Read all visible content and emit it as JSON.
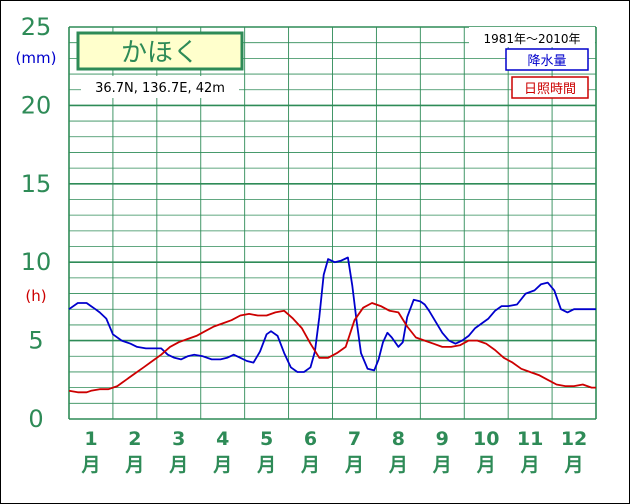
{
  "colors": {
    "grid": "#2e8b57",
    "frame_text": "#2e8b57",
    "precip_line": "#0000cc",
    "sunshine_line": "#cc0000",
    "title_box_fill": "#ffffcc",
    "title_text": "#2e8b57"
  },
  "chart_data": {
    "type": "line",
    "title": "かほく",
    "location": "36.7N,  136.7E,  42m",
    "period": "1981年〜2010年",
    "y_unit_primary": "(mm)",
    "y_unit_secondary": "(h)",
    "ylim": [
      0,
      25
    ],
    "y_ticks": [
      "0",
      "5",
      "10",
      "15",
      "20",
      "25"
    ],
    "month_numbers": [
      "1",
      "2",
      "3",
      "4",
      "5",
      "6",
      "7",
      "8",
      "9",
      "10",
      "11",
      "12"
    ],
    "month_suffix": "月",
    "x_range_months": [
      0.5,
      12.5
    ],
    "series": [
      {
        "name": "降水量",
        "x": [
          0.5,
          0.7,
          0.9,
          1.0,
          1.1,
          1.2,
          1.35,
          1.5,
          1.7,
          1.9,
          2.05,
          2.25,
          2.45,
          2.6,
          2.75,
          2.9,
          3.05,
          3.2,
          3.35,
          3.55,
          3.75,
          3.95,
          4.1,
          4.25,
          4.4,
          4.55,
          4.7,
          4.85,
          5.0,
          5.1,
          5.25,
          5.4,
          5.55,
          5.7,
          5.85,
          6.0,
          6.1,
          6.2,
          6.3,
          6.4,
          6.55,
          6.7,
          6.85,
          6.95,
          7.05,
          7.15,
          7.3,
          7.45,
          7.55,
          7.65,
          7.75,
          7.85,
          8.0,
          8.1,
          8.2,
          8.35,
          8.5,
          8.6,
          8.7,
          8.85,
          9.0,
          9.15,
          9.3,
          9.45,
          9.6,
          9.75,
          9.9,
          10.05,
          10.2,
          10.35,
          10.5,
          10.7,
          10.9,
          11.1,
          11.25,
          11.4,
          11.55,
          11.7,
          11.85,
          12.0,
          12.1,
          12.2,
          12.3,
          12.4,
          12.5
        ],
        "y": [
          7.0,
          7.4,
          7.4,
          7.2,
          7.0,
          6.8,
          6.4,
          5.4,
          5.0,
          4.8,
          4.6,
          4.5,
          4.5,
          4.5,
          4.1,
          3.9,
          3.8,
          4.0,
          4.1,
          4.0,
          3.8,
          3.8,
          3.9,
          4.1,
          3.9,
          3.7,
          3.6,
          4.3,
          5.4,
          5.6,
          5.3,
          4.2,
          3.3,
          3.0,
          3.0,
          3.3,
          4.3,
          6.5,
          9.2,
          10.2,
          10.0,
          10.1,
          10.3,
          8.5,
          6.2,
          4.2,
          3.2,
          3.1,
          3.8,
          4.9,
          5.5,
          5.2,
          4.6,
          4.9,
          6.5,
          7.6,
          7.5,
          7.3,
          6.9,
          6.2,
          5.5,
          5.0,
          4.8,
          5.0,
          5.3,
          5.8,
          6.1,
          6.4,
          6.9,
          7.2,
          7.2,
          7.3,
          8.0,
          8.2,
          8.6,
          8.7,
          8.2,
          7.0,
          6.8,
          7.0,
          7.0,
          7.0,
          7.0,
          7.0,
          7.0
        ]
      },
      {
        "name": "日照時間",
        "x": [
          0.5,
          0.7,
          0.9,
          1.0,
          1.2,
          1.4,
          1.6,
          1.8,
          2.0,
          2.2,
          2.4,
          2.6,
          2.8,
          3.0,
          3.2,
          3.4,
          3.6,
          3.8,
          4.0,
          4.2,
          4.4,
          4.6,
          4.8,
          5.0,
          5.2,
          5.4,
          5.6,
          5.8,
          6.0,
          6.2,
          6.4,
          6.6,
          6.8,
          7.0,
          7.2,
          7.4,
          7.6,
          7.8,
          8.0,
          8.2,
          8.4,
          8.6,
          8.8,
          9.0,
          9.2,
          9.4,
          9.6,
          9.8,
          10.0,
          10.2,
          10.4,
          10.6,
          10.8,
          11.0,
          11.2,
          11.4,
          11.6,
          11.8,
          12.0,
          12.2,
          12.4,
          12.5
        ],
        "y": [
          1.8,
          1.7,
          1.7,
          1.8,
          1.9,
          1.9,
          2.1,
          2.5,
          2.9,
          3.3,
          3.7,
          4.1,
          4.6,
          4.9,
          5.1,
          5.3,
          5.6,
          5.9,
          6.1,
          6.3,
          6.6,
          6.7,
          6.6,
          6.6,
          6.8,
          6.9,
          6.4,
          5.8,
          4.8,
          3.9,
          3.9,
          4.2,
          4.6,
          6.3,
          7.1,
          7.4,
          7.2,
          6.9,
          6.8,
          5.9,
          5.2,
          5.0,
          4.8,
          4.6,
          4.6,
          4.7,
          5.0,
          5.0,
          4.8,
          4.4,
          3.9,
          3.6,
          3.2,
          3.0,
          2.8,
          2.5,
          2.2,
          2.1,
          2.1,
          2.2,
          2.0,
          2.0
        ]
      }
    ]
  }
}
